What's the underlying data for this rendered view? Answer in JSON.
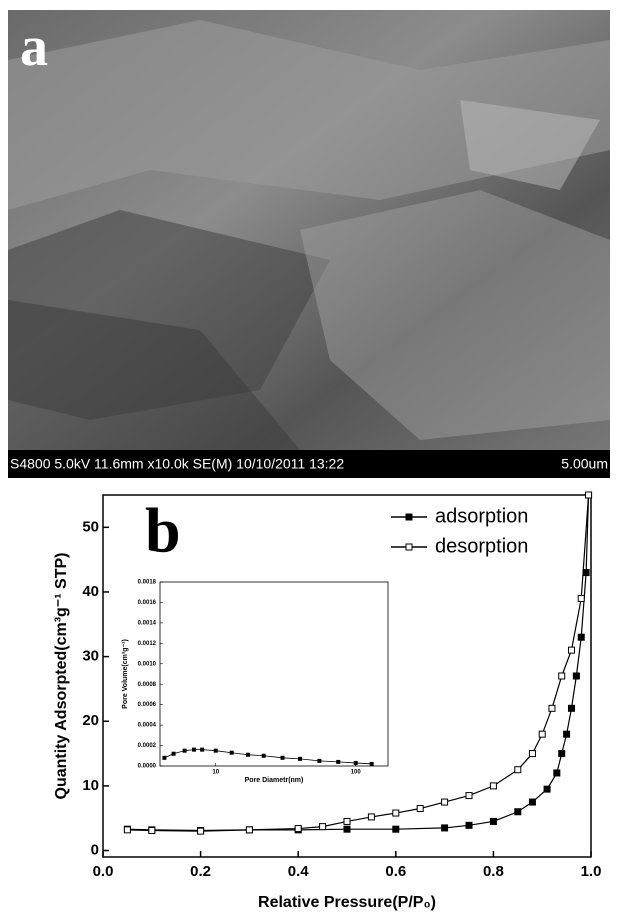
{
  "sem_image": {
    "label": "a",
    "info": "S4800 5.0kV 11.6mm x10.0k SE(M) 10/10/2011 13:22",
    "scale": "5.00um"
  },
  "chart_data": [
    {
      "type": "line",
      "annotation": "b",
      "x_label": "Relative Pressure(P/P₀)",
      "y_label": "Quantity Adsorpted(cm³g⁻¹ STP)",
      "xlim": [
        0,
        1
      ],
      "ylim": [
        -1,
        55
      ],
      "xticks": [
        {
          "value": 0,
          "label": "0.0"
        },
        {
          "value": 0.2,
          "label": "0.2"
        },
        {
          "value": 0.4,
          "label": "0.4"
        },
        {
          "value": 0.6,
          "label": "0.6"
        },
        {
          "value": 0.8,
          "label": "0.8"
        },
        {
          "value": 1,
          "label": "1.0"
        }
      ],
      "yticks": [
        0,
        10,
        20,
        30,
        40,
        50
      ],
      "legend": "upper right",
      "series": [
        {
          "name": "adsorption",
          "color": "#000000",
          "marker_filled": true,
          "x": [
            0.05,
            0.1,
            0.2,
            0.3,
            0.4,
            0.5,
            0.6,
            0.7,
            0.75,
            0.8,
            0.85,
            0.88,
            0.91,
            0.93,
            0.94,
            0.95,
            0.96,
            0.97,
            0.98,
            0.99,
            0.995
          ],
          "values": [
            3.3,
            3.2,
            3.1,
            3.2,
            3.2,
            3.3,
            3.3,
            3.5,
            3.9,
            4.5,
            6,
            7.5,
            9.5,
            12,
            15,
            18,
            22,
            27,
            33,
            43,
            55
          ]
        },
        {
          "name": "desorption",
          "color": "#000000",
          "marker_filled": false,
          "x": [
            0.995,
            0.98,
            0.96,
            0.94,
            0.92,
            0.9,
            0.88,
            0.85,
            0.8,
            0.75,
            0.7,
            0.65,
            0.6,
            0.55,
            0.5,
            0.45,
            0.4,
            0.3,
            0.2,
            0.1,
            0.05
          ],
          "values": [
            55,
            39,
            31,
            27,
            22,
            18,
            15,
            12.5,
            10,
            8.5,
            7.5,
            6.5,
            5.8,
            5.2,
            4.5,
            3.7,
            3.4,
            3.2,
            3.0,
            3.1,
            3.2
          ]
        }
      ]
    },
    {
      "type": "line",
      "x_scale": "log",
      "x_label": "Pore Diametr(nm)",
      "y_label": "Pore Volume(cm³g⁻¹)",
      "xlim": [
        4,
        170
      ],
      "ylim": [
        0,
        0.0018
      ],
      "xticks": [
        10,
        100
      ],
      "yticks": [
        {
          "value": 0,
          "label": "0.0000"
        },
        {
          "value": 0.0002,
          "label": "0.0002"
        },
        {
          "value": 0.0004,
          "label": "0.0004"
        },
        {
          "value": 0.0006,
          "label": "0.0006"
        },
        {
          "value": 0.0008,
          "label": "0.0008"
        },
        {
          "value": 0.001,
          "label": "0.0010"
        },
        {
          "value": 0.0012,
          "label": "0.0012"
        },
        {
          "value": 0.0014,
          "label": "0.0014"
        },
        {
          "value": 0.0016,
          "label": "0.0016"
        },
        {
          "value": 0.0018,
          "label": "0.0018"
        }
      ],
      "series": [
        {
          "color": "#000000",
          "marker_filled": true,
          "x": [
            4.3,
            5,
            6,
            7,
            8,
            10,
            13,
            17,
            22,
            30,
            40,
            55,
            75,
            100,
            130
          ],
          "values": [
            8e-05,
            0.00012,
            0.00015,
            0.00016,
            0.00016,
            0.00015,
            0.00013,
            0.00011,
            0.0001,
            8e-05,
            7e-05,
            5e-05,
            4e-05,
            3e-05,
            2e-05
          ]
        }
      ]
    }
  ]
}
